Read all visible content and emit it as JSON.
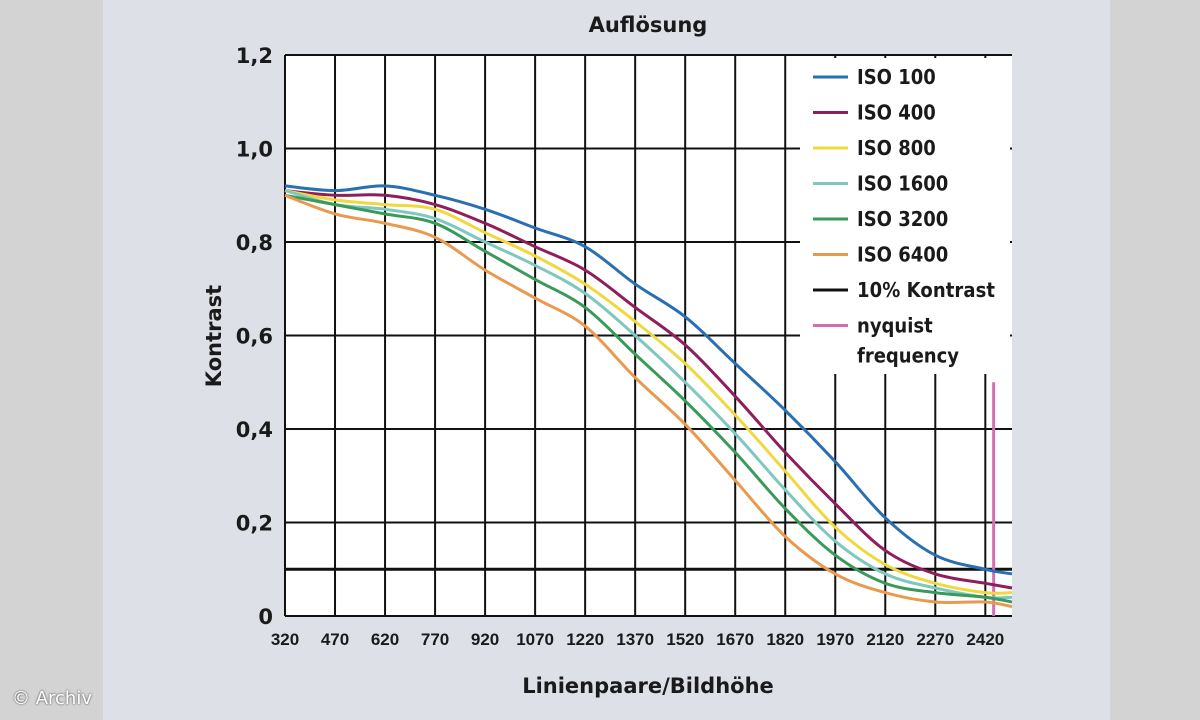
{
  "credit": "© Archiv",
  "chart_data": {
    "type": "line",
    "title": "Auflösung",
    "xlabel": "Linienpaare/Bildhöhe",
    "ylabel": "Kontrast",
    "xlim": [
      320,
      2500
    ],
    "ylim": [
      0,
      1.2
    ],
    "x_ticks": [
      320,
      470,
      620,
      770,
      920,
      1070,
      1220,
      1370,
      1520,
      1670,
      1820,
      1970,
      2120,
      2270,
      2420
    ],
    "y_ticks": [
      {
        "value": 0,
        "label": "0"
      },
      {
        "value": 0.2,
        "label": "0,2"
      },
      {
        "value": 0.4,
        "label": "0,4"
      },
      {
        "value": 0.6,
        "label": "0,6"
      },
      {
        "value": 0.8,
        "label": "0,8"
      },
      {
        "value": 1.0,
        "label": "1,0"
      },
      {
        "value": 1.2,
        "label": "1,2"
      }
    ],
    "grid": true,
    "legend_position": "top-right",
    "x": [
      320,
      470,
      620,
      770,
      920,
      1070,
      1220,
      1370,
      1520,
      1670,
      1820,
      1970,
      2120,
      2270,
      2420,
      2500
    ],
    "series": [
      {
        "name": "ISO 100",
        "color": "#2a6fb0",
        "values": [
          0.92,
          0.91,
          0.92,
          0.9,
          0.87,
          0.83,
          0.79,
          0.71,
          0.64,
          0.54,
          0.44,
          0.33,
          0.21,
          0.13,
          0.1,
          0.09
        ]
      },
      {
        "name": "ISO 400",
        "color": "#8e1f5c",
        "values": [
          0.91,
          0.9,
          0.9,
          0.88,
          0.84,
          0.79,
          0.74,
          0.66,
          0.58,
          0.47,
          0.35,
          0.24,
          0.14,
          0.09,
          0.07,
          0.06
        ]
      },
      {
        "name": "ISO 800",
        "color": "#f0d840",
        "values": [
          0.91,
          0.89,
          0.88,
          0.87,
          0.82,
          0.77,
          0.71,
          0.63,
          0.54,
          0.43,
          0.31,
          0.19,
          0.11,
          0.07,
          0.05,
          0.05
        ]
      },
      {
        "name": "ISO 1600",
        "color": "#7ec8c0",
        "values": [
          0.91,
          0.88,
          0.87,
          0.85,
          0.8,
          0.75,
          0.69,
          0.6,
          0.5,
          0.39,
          0.27,
          0.16,
          0.09,
          0.06,
          0.04,
          0.04
        ]
      },
      {
        "name": "ISO 3200",
        "color": "#3a9a5a",
        "values": [
          0.9,
          0.88,
          0.86,
          0.84,
          0.78,
          0.72,
          0.66,
          0.56,
          0.46,
          0.35,
          0.23,
          0.13,
          0.07,
          0.05,
          0.04,
          0.03
        ]
      },
      {
        "name": "ISO 6400",
        "color": "#e89a50",
        "values": [
          0.9,
          0.86,
          0.84,
          0.81,
          0.74,
          0.68,
          0.62,
          0.51,
          0.41,
          0.29,
          0.17,
          0.09,
          0.05,
          0.03,
          0.03,
          0.02
        ]
      }
    ],
    "reference_lines": [
      {
        "name": "10% Kontrast",
        "axis": "y",
        "value": 0.1,
        "color": "#111111"
      },
      {
        "name": "nyquist frequency",
        "axis": "x",
        "value": 2445,
        "color": "#d070b0"
      }
    ],
    "legend": [
      {
        "label": "ISO 100",
        "color": "#2a6fb0"
      },
      {
        "label": "ISO 400",
        "color": "#8e1f5c"
      },
      {
        "label": "ISO 800",
        "color": "#f0d840"
      },
      {
        "label": "ISO 1600",
        "color": "#7ec8c0"
      },
      {
        "label": "ISO 3200",
        "color": "#3a9a5a"
      },
      {
        "label": "ISO 6400",
        "color": "#e89a50"
      },
      {
        "label": "10% Kontrast",
        "color": "#111111"
      },
      {
        "label": "nyquist frequency",
        "color": "#d070b0"
      }
    ]
  }
}
